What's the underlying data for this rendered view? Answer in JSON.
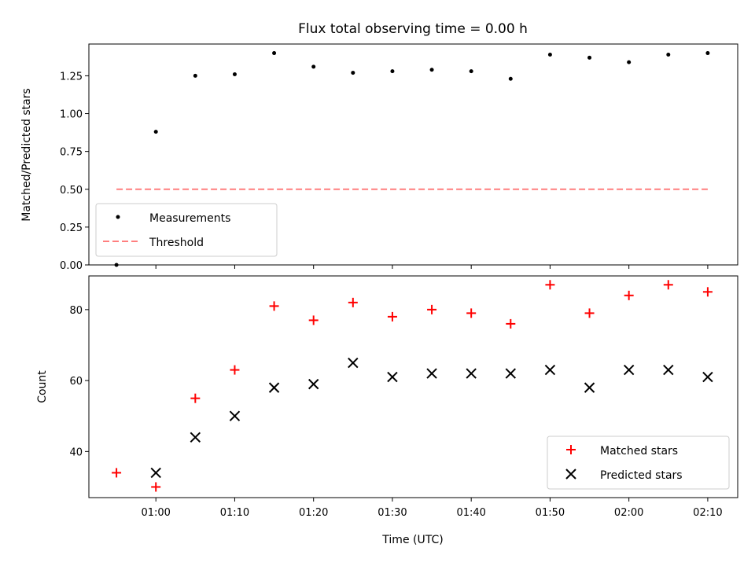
{
  "chart_data": [
    {
      "type": "scatter",
      "title": "Flux total observing time = 0.00 h",
      "xlabel": "",
      "ylabel": "Matched/Predicted stars",
      "ylim": [
        0,
        1.46
      ],
      "yticks": [
        "0.00",
        "0.25",
        "0.50",
        "0.75",
        "1.00",
        "1.25"
      ],
      "x_minutes": [
        55,
        60,
        65,
        70,
        75,
        80,
        85,
        90,
        95,
        100,
        105,
        110,
        115,
        120,
        125,
        130
      ],
      "xlim_minutes": [
        51.5,
        133.8
      ],
      "xticks": [
        60,
        70,
        80,
        90,
        100,
        110,
        120,
        130
      ],
      "series": [
        {
          "name": "Measurements",
          "marker": "dot",
          "color": "#000000",
          "values": [
            0.0,
            0.88,
            1.25,
            1.26,
            1.4,
            1.31,
            1.27,
            1.28,
            1.29,
            1.28,
            1.23,
            1.39,
            1.37,
            1.34,
            1.39,
            1.4
          ]
        },
        {
          "name": "Threshold",
          "marker": "dashed-line",
          "color": "#ff7f7f",
          "x_range": [
            55,
            130
          ],
          "value": 0.5
        }
      ],
      "legend_position": "lower-left"
    },
    {
      "type": "scatter",
      "title": "",
      "xlabel": "Time (UTC)",
      "ylabel": "Count",
      "ylim": [
        27,
        89.5
      ],
      "yticks": [
        "40",
        "60",
        "80"
      ],
      "x_minutes": [
        55,
        60,
        65,
        70,
        75,
        80,
        85,
        90,
        95,
        100,
        105,
        110,
        115,
        120,
        125,
        130
      ],
      "xlim_minutes": [
        51.5,
        133.8
      ],
      "xticks": [
        60,
        70,
        80,
        90,
        100,
        110,
        120,
        130
      ],
      "xtick_labels": [
        "01:00",
        "01:10",
        "01:20",
        "01:30",
        "01:40",
        "01:50",
        "02:00",
        "02:10"
      ],
      "series": [
        {
          "name": "Matched stars",
          "marker": "plus",
          "color": "#ff0000",
          "values": [
            34,
            30,
            55,
            63,
            81,
            77,
            82,
            78,
            80,
            79,
            76,
            87,
            79,
            84,
            87,
            85
          ]
        },
        {
          "name": "Predicted stars",
          "marker": "x",
          "color": "#000000",
          "values": [
            null,
            34,
            44,
            50,
            58,
            59,
            65,
            61,
            62,
            62,
            62,
            63,
            58,
            63,
            63,
            61
          ]
        }
      ],
      "legend_position": "lower-right"
    }
  ]
}
